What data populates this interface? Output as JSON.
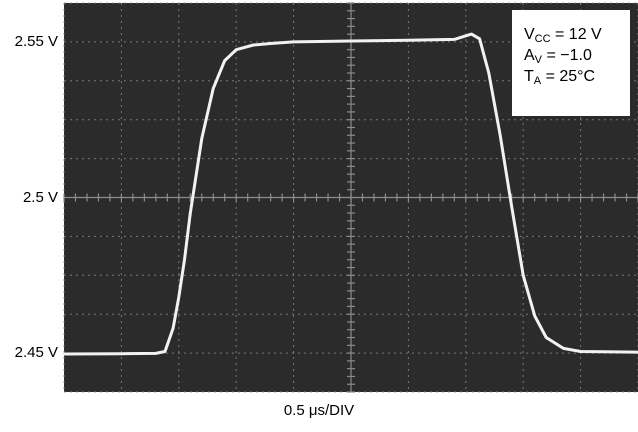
{
  "chart_data": {
    "type": "line",
    "title": "",
    "xlabel": "0.5 μs/DIV",
    "ylabel": "",
    "y_tick_labels": [
      "2.55 V",
      "2.5 V",
      "2.45 V"
    ],
    "y_ticks": [
      2.55,
      2.5,
      2.45
    ],
    "ylim": [
      2.4375,
      2.5625
    ],
    "xlim": [
      0,
      5.0
    ],
    "x_unit": "μs",
    "grid": true,
    "background": "dark oscilloscope screen",
    "series": [
      {
        "x": [
          0,
          0.5,
          0.8,
          0.88,
          0.95,
          1.0,
          1.05,
          1.1,
          1.2,
          1.3,
          1.4,
          1.5,
          1.65,
          1.8,
          2.0,
          2.5,
          3.0,
          3.4,
          3.55,
          3.62,
          3.7,
          3.8,
          3.9,
          4.0,
          4.1,
          4.2,
          4.35,
          4.5,
          5.0
        ],
        "y": [
          2.4497,
          2.4498,
          2.4499,
          2.4505,
          2.458,
          2.468,
          2.48,
          2.495,
          2.519,
          2.535,
          2.544,
          2.5475,
          2.549,
          2.5495,
          2.55,
          2.5503,
          2.5505,
          2.5508,
          2.5525,
          2.551,
          2.54,
          2.52,
          2.497,
          2.475,
          2.462,
          2.455,
          2.4515,
          2.4505,
          2.4503
        ]
      }
    ],
    "annotations": [
      {
        "line1_main": "V",
        "line1_sub": "CC",
        "line1_rest": " = 12 V"
      },
      {
        "line2_main": "A",
        "line2_sub": "V",
        "line2_rest": " = −1.0"
      },
      {
        "line3_main": "T",
        "line3_sub": "A",
        "line3_rest": " = 25°C"
      }
    ]
  },
  "colors": {
    "screen": "#2b2b2b",
    "grid": "#8c8c8c",
    "trace": "#f2f2f2"
  }
}
